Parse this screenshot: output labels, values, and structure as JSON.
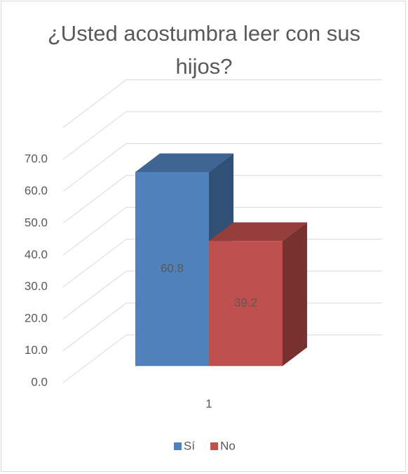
{
  "chart_data": {
    "type": "bar3d",
    "title": "¿Usted acostumbra leer con sus hijos?",
    "categories": [
      "1"
    ],
    "series": [
      {
        "name": "Sí",
        "color": "#4f81bd",
        "values": [
          60.8
        ]
      },
      {
        "name": "No",
        "color": "#c0504d",
        "values": [
          39.2
        ]
      }
    ],
    "ylim": [
      0,
      80
    ],
    "yticks": [
      {
        "value": 0,
        "label": "0.0"
      },
      {
        "value": 10,
        "label": "10.0"
      },
      {
        "value": 20,
        "label": "20.0"
      },
      {
        "value": 30,
        "label": "30.0"
      },
      {
        "value": 40,
        "label": "40.0"
      },
      {
        "value": 50,
        "label": "50.0"
      },
      {
        "value": 60,
        "label": "60.0"
      },
      {
        "value": 70,
        "label": "70.0"
      }
    ],
    "grid": true,
    "legend": "bottom"
  }
}
